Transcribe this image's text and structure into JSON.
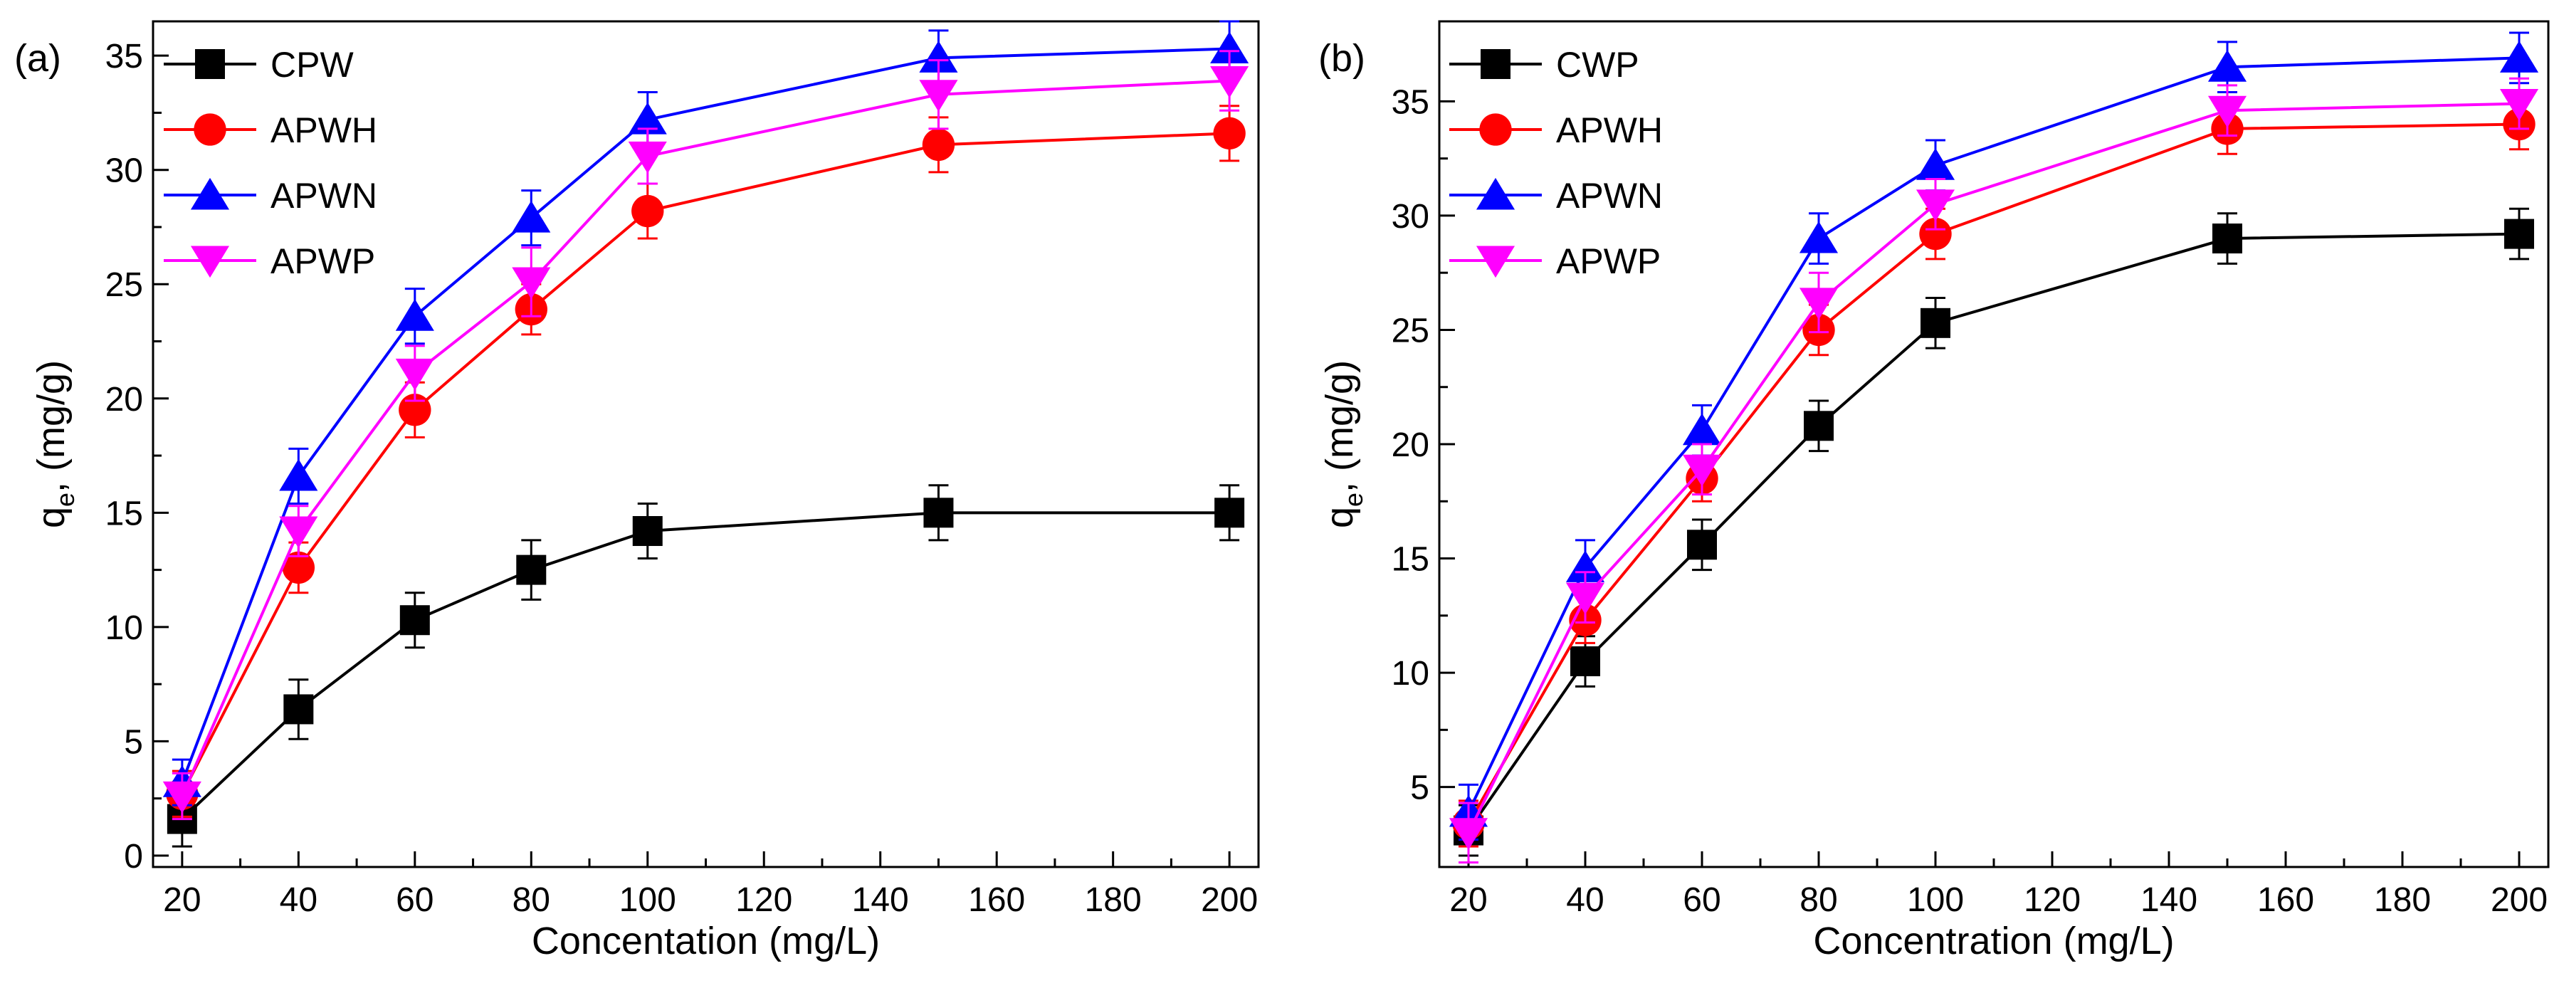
{
  "panels": [
    {
      "panel_label": "(a)",
      "xlabel": "Concentation (mg/L)",
      "ylabel_main": "q",
      "ylabel_sub": "e",
      "ylabel_rest": ", (mg/g)",
      "ylim": [
        -0.5,
        36.5
      ],
      "xlim": [
        15,
        205
      ],
      "xticks": [
        20,
        40,
        60,
        80,
        100,
        120,
        140,
        160,
        180,
        200
      ],
      "yticks": [
        0,
        5,
        10,
        15,
        20,
        25,
        30,
        35
      ]
    },
    {
      "panel_label": "(b)",
      "xlabel": "Concentration (mg/L)",
      "ylabel_main": "q",
      "ylabel_sub": "e",
      "ylabel_rest": ", (mg/g)",
      "ylim": [
        1.5,
        38.5
      ],
      "xlim": [
        15,
        205
      ],
      "xticks": [
        20,
        40,
        60,
        80,
        100,
        120,
        140,
        160,
        180,
        200
      ],
      "yticks": [
        5,
        10,
        15,
        20,
        25,
        30,
        35
      ]
    }
  ],
  "chart_data": [
    {
      "type": "line",
      "title": "(a)",
      "xlabel": "Concentation (mg/L)",
      "ylabel": "qe, (mg/g)",
      "x": [
        20,
        40,
        60,
        80,
        100,
        150,
        200
      ],
      "xlim": [
        15,
        205
      ],
      "ylim": [
        -0.5,
        36.5
      ],
      "legend": "top-left",
      "series": [
        {
          "name": "CPW",
          "color": "#000000",
          "marker": "square",
          "values": [
            1.6,
            6.4,
            10.3,
            12.5,
            14.2,
            15.0,
            15.0
          ],
          "errors": [
            1.2,
            1.3,
            1.2,
            1.3,
            1.2,
            1.2,
            1.2
          ]
        },
        {
          "name": "APWH",
          "color": "#ff0000",
          "marker": "circle",
          "values": [
            2.7,
            12.6,
            19.5,
            23.9,
            28.2,
            31.1,
            31.6
          ],
          "errors": [
            1.0,
            1.1,
            1.2,
            1.1,
            1.2,
            1.2,
            1.2
          ]
        },
        {
          "name": "APWN",
          "color": "#0000ff",
          "marker": "triangle-up",
          "values": [
            3.2,
            16.6,
            23.6,
            27.9,
            32.2,
            34.9,
            35.3
          ],
          "errors": [
            1.0,
            1.2,
            1.2,
            1.2,
            1.2,
            1.2,
            1.2
          ]
        },
        {
          "name": "APWP",
          "color": "#ff00ff",
          "marker": "triangle-down",
          "values": [
            2.6,
            14.2,
            21.1,
            25.1,
            30.6,
            33.3,
            33.9
          ],
          "errors": [
            1.0,
            1.1,
            1.2,
            1.5,
            1.2,
            1.5,
            1.3
          ]
        }
      ]
    },
    {
      "type": "line",
      "title": "(b)",
      "xlabel": "Concentration (mg/L)",
      "ylabel": "qe, (mg/g)",
      "x": [
        20,
        40,
        60,
        80,
        100,
        150,
        200
      ],
      "xlim": [
        15,
        205
      ],
      "ylim": [
        1.5,
        38.5
      ],
      "legend": "top-left",
      "series": [
        {
          "name": "CWP",
          "color": "#000000",
          "marker": "square",
          "values": [
            3.1,
            10.5,
            15.6,
            20.8,
            25.3,
            29.0,
            29.2
          ],
          "errors": [
            1.1,
            1.1,
            1.1,
            1.1,
            1.1,
            1.1,
            1.1
          ]
        },
        {
          "name": "APWH",
          "color": "#ff0000",
          "marker": "circle",
          "values": [
            3.4,
            12.3,
            18.5,
            25.0,
            29.2,
            33.8,
            34.0
          ],
          "errors": [
            1.0,
            1.0,
            1.0,
            1.1,
            1.1,
            1.1,
            1.1
          ]
        },
        {
          "name": "APWN",
          "color": "#0000ff",
          "marker": "triangle-up",
          "values": [
            3.9,
            14.6,
            20.6,
            29.0,
            32.2,
            36.5,
            36.9
          ],
          "errors": [
            1.2,
            1.2,
            1.1,
            1.1,
            1.1,
            1.1,
            1.1
          ]
        },
        {
          "name": "APWP",
          "color": "#ff00ff",
          "marker": "triangle-down",
          "values": [
            3.0,
            13.3,
            18.9,
            26.2,
            30.5,
            34.6,
            34.9
          ],
          "errors": [
            1.3,
            1.1,
            1.1,
            1.3,
            1.1,
            1.1,
            1.1
          ]
        }
      ]
    }
  ]
}
